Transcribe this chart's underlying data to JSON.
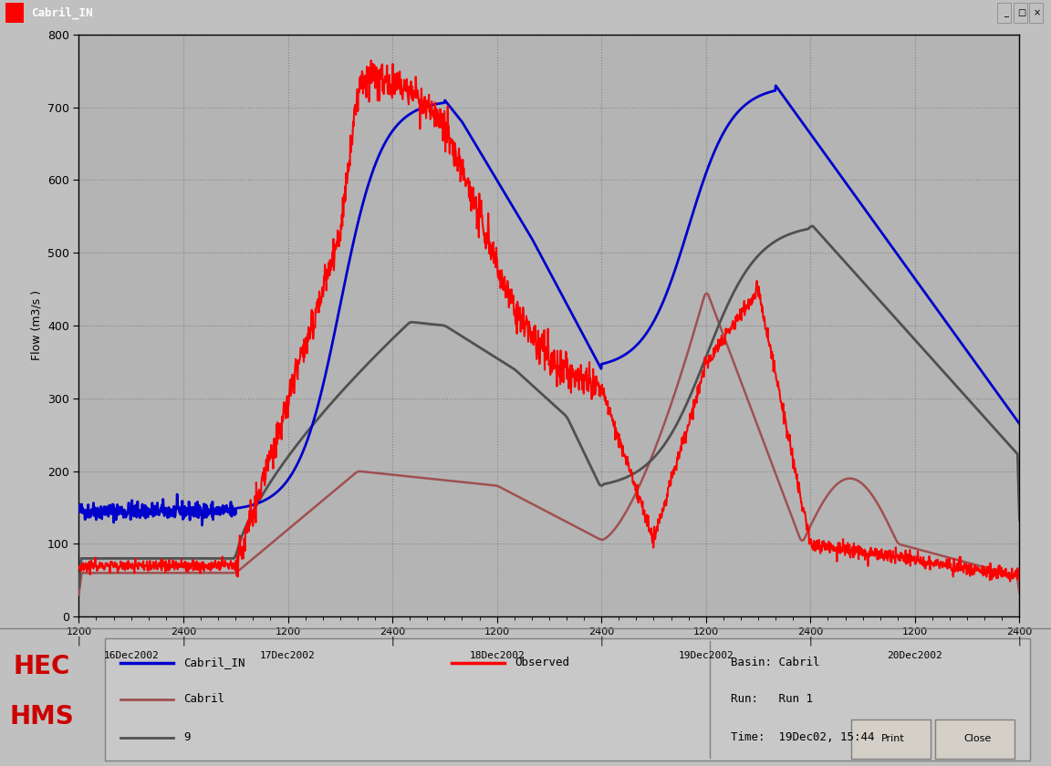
{
  "title": "Cabril_IN",
  "ylabel": "Flow (m3/s )",
  "date_labels": [
    "16Dec2002",
    "17Dec2002",
    "18Dec2002",
    "19Dec2002",
    "20Dec2002"
  ],
  "ylim": [
    0,
    800
  ],
  "yticks": [
    0,
    100,
    200,
    300,
    400,
    500,
    600,
    700,
    800
  ],
  "bg_color": "#c0c0c0",
  "plot_bg_color": "#b4b4b4",
  "grid_color": "#808080",
  "line_blue": "#0000cc",
  "line_red": "#ff0000",
  "line_rose": "#a05050",
  "line_dark": "#505050",
  "basin_text": "Basin: Cabril",
  "run_text": "Run:   Run 1",
  "time_text": "Time:  19Dec02, 15:44",
  "hec_hms_color": "#cc0000",
  "title_bar_color": "#000099",
  "legend_box_bg": "#c8c8c8"
}
